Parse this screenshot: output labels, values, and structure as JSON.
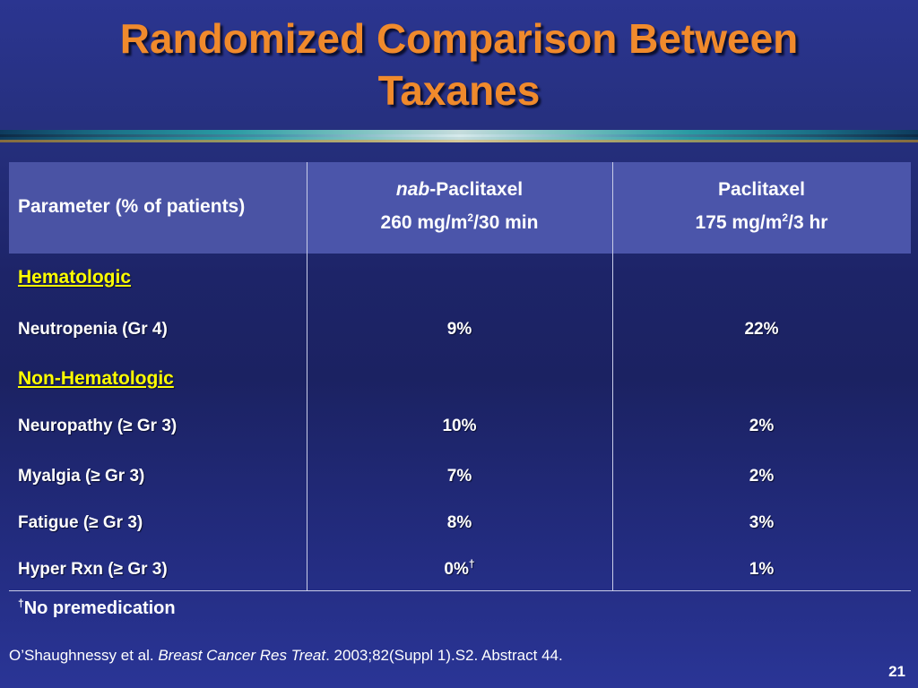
{
  "title": {
    "line1": "Randomized Comparison Between",
    "line2": "Taxanes"
  },
  "table": {
    "header": {
      "param": "Parameter (% of patients)",
      "nab_italic": "nab",
      "nab_rest": "-Paclitaxel",
      "nab_dose_a": "260 mg/m",
      "nab_dose_sup": "2",
      "nab_dose_b": "/30 min",
      "pac_name": "Paclitaxel",
      "pac_dose_a": "175 mg/m",
      "pac_dose_sup": "2",
      "pac_dose_b": "/3 hr"
    },
    "sections": {
      "hematologic": "Hematologic",
      "non_hematologic": "Non-Hematologic"
    },
    "rows": [
      {
        "label": "Neutropenia (Gr 4)",
        "nab": "9%",
        "nab_sup": "",
        "pac": "22%"
      },
      {
        "label": "Neuropathy (≥ Gr 3)",
        "nab": "10%",
        "nab_sup": "",
        "pac": "2%"
      },
      {
        "label": "Myalgia (≥ Gr 3)",
        "nab": "7%",
        "nab_sup": "",
        "pac": "2%"
      },
      {
        "label": "Fatigue (≥ Gr 3)",
        "nab": "8%",
        "nab_sup": "",
        "pac": "3%"
      },
      {
        "label": "Hyper Rxn (≥ Gr 3)",
        "nab": "0%",
        "nab_sup": "†",
        "pac": "1%"
      }
    ]
  },
  "footnote": {
    "mark": "†",
    "text": "No premedication"
  },
  "citation": {
    "authors": "O’Shaughnessy et al. ",
    "journal": "Breast Cancer Res Treat",
    "rest": ". 2003;82(Suppl 1).S2. Abstract 44."
  },
  "page_number": "21",
  "colors": {
    "title": "#f08a2c",
    "section_heading": "#ffff00",
    "header_bg": "#4a54a8",
    "background": "#1d2468"
  }
}
